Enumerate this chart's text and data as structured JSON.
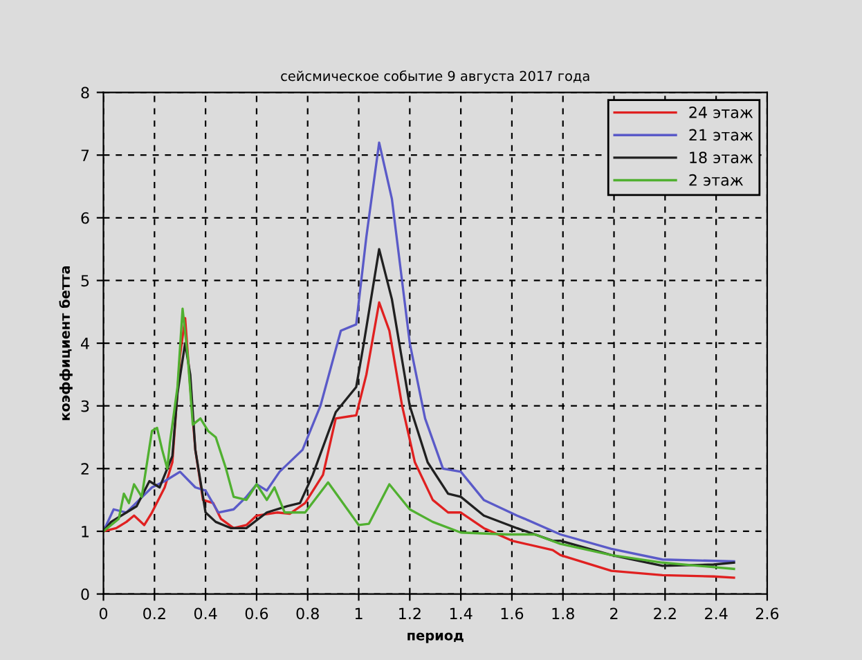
{
  "chart_data": {
    "type": "line",
    "title": "сейсмическое событие 9 августа 2017 года",
    "xlabel": "период",
    "ylabel": "коэффициент бетта",
    "xlim": [
      0,
      2.6
    ],
    "ylim": [
      0,
      8
    ],
    "xticks": [
      0,
      0.2,
      0.4,
      0.6,
      0.8,
      1,
      1.2,
      1.4,
      1.6,
      1.8,
      2,
      2.2,
      2.4,
      2.6
    ],
    "yticks": [
      0,
      1,
      2,
      3,
      4,
      5,
      6,
      7,
      8
    ],
    "grid": true,
    "legend": "top right",
    "line_style": "solid",
    "series": [
      {
        "name": "24 этаж",
        "color": "#e02020",
        "x": [
          0,
          0.05,
          0.09,
          0.12,
          0.16,
          0.19,
          0.24,
          0.27,
          0.3,
          0.32,
          0.34,
          0.36,
          0.39,
          0.43,
          0.46,
          0.51,
          0.56,
          0.6,
          0.68,
          0.73,
          0.79,
          0.86,
          0.91,
          0.99,
          1.03,
          1.08,
          1.12,
          1.17,
          1.22,
          1.29,
          1.35,
          1.4,
          1.49,
          1.6,
          1.76,
          1.79,
          1.99,
          2.19,
          2.39,
          2.47
        ],
        "values": [
          1.0,
          1.05,
          1.15,
          1.25,
          1.1,
          1.3,
          1.7,
          2.1,
          3.8,
          4.4,
          3.3,
          2.3,
          1.5,
          1.45,
          1.2,
          1.05,
          1.1,
          1.25,
          1.3,
          1.28,
          1.45,
          1.9,
          2.8,
          2.85,
          3.5,
          4.65,
          4.2,
          3.0,
          2.1,
          1.5,
          1.3,
          1.3,
          1.05,
          0.85,
          0.7,
          0.62,
          0.37,
          0.3,
          0.28,
          0.26
        ]
      },
      {
        "name": "21 этаж",
        "color": "#5a5ac8",
        "x": [
          0,
          0.04,
          0.09,
          0.14,
          0.19,
          0.24,
          0.3,
          0.36,
          0.4,
          0.45,
          0.51,
          0.56,
          0.6,
          0.64,
          0.69,
          0.78,
          0.85,
          0.93,
          0.99,
          1.03,
          1.08,
          1.13,
          1.2,
          1.26,
          1.33,
          1.4,
          1.49,
          1.62,
          1.65,
          1.79,
          1.99,
          2.19,
          2.47
        ],
        "values": [
          1.0,
          1.35,
          1.3,
          1.5,
          1.7,
          1.8,
          1.95,
          1.7,
          1.65,
          1.3,
          1.35,
          1.55,
          1.75,
          1.65,
          1.95,
          2.3,
          3.0,
          4.2,
          4.3,
          5.7,
          7.2,
          6.3,
          4.0,
          2.8,
          2.0,
          1.95,
          1.5,
          1.25,
          1.2,
          0.95,
          0.72,
          0.55,
          0.52
        ]
      },
      {
        "name": "18 этаж",
        "color": "#202020",
        "x": [
          0,
          0.03,
          0.09,
          0.13,
          0.18,
          0.22,
          0.27,
          0.29,
          0.32,
          0.34,
          0.36,
          0.4,
          0.44,
          0.5,
          0.56,
          0.64,
          0.72,
          0.77,
          0.82,
          0.91,
          0.99,
          1.02,
          1.08,
          1.13,
          1.2,
          1.27,
          1.35,
          1.4,
          1.49,
          1.62,
          1.76,
          1.79,
          1.99,
          2.19,
          2.39,
          2.47
        ],
        "values": [
          1.0,
          1.15,
          1.3,
          1.4,
          1.8,
          1.7,
          2.2,
          3.2,
          4.0,
          3.5,
          2.3,
          1.3,
          1.15,
          1.05,
          1.05,
          1.3,
          1.4,
          1.45,
          1.9,
          2.9,
          3.3,
          4.0,
          5.5,
          4.7,
          3.0,
          2.1,
          1.6,
          1.55,
          1.25,
          1.05,
          0.85,
          0.85,
          0.62,
          0.45,
          0.47,
          0.5
        ]
      },
      {
        "name": "2 этаж",
        "color": "#50b030",
        "x": [
          0,
          0.06,
          0.08,
          0.1,
          0.12,
          0.15,
          0.19,
          0.21,
          0.23,
          0.25,
          0.26,
          0.29,
          0.31,
          0.33,
          0.35,
          0.38,
          0.41,
          0.44,
          0.48,
          0.51,
          0.56,
          0.6,
          0.64,
          0.67,
          0.71,
          0.79,
          0.88,
          1.0,
          1.04,
          1.12,
          1.2,
          1.29,
          1.4,
          1.58,
          1.69,
          1.79,
          1.99,
          2.19,
          2.47
        ],
        "values": [
          1.0,
          1.2,
          1.6,
          1.45,
          1.75,
          1.55,
          2.6,
          2.65,
          2.3,
          2.0,
          2.4,
          3.3,
          4.55,
          3.8,
          2.7,
          2.8,
          2.6,
          2.5,
          2.0,
          1.55,
          1.5,
          1.75,
          1.5,
          1.7,
          1.3,
          1.3,
          1.78,
          1.1,
          1.12,
          1.75,
          1.35,
          1.15,
          0.98,
          0.95,
          0.95,
          0.8,
          0.62,
          0.5,
          0.4
        ]
      }
    ]
  }
}
